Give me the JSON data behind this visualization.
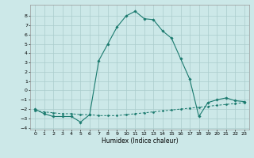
{
  "xlabel": "Humidex (Indice chaleur)",
  "bg_color": "#cce8e8",
  "grid_color": "#aacccc",
  "line_color": "#1a7a6e",
  "line1_x": [
    0,
    1,
    2,
    3,
    4,
    5,
    6,
    7,
    8,
    9,
    10,
    11,
    12,
    13,
    14,
    15,
    16,
    17,
    18,
    19,
    20,
    21,
    22,
    23
  ],
  "line1_y": [
    -2.0,
    -2.5,
    -2.8,
    -2.8,
    -2.8,
    -3.4,
    -2.6,
    3.2,
    5.0,
    6.8,
    8.0,
    8.5,
    7.7,
    7.6,
    6.4,
    5.6,
    3.4,
    1.2,
    -2.8,
    -1.3,
    -1.0,
    -0.8,
    -1.1,
    -1.2
  ],
  "line2_x": [
    0,
    1,
    2,
    3,
    4,
    5,
    6,
    7,
    8,
    9,
    10,
    11,
    12,
    13,
    14,
    15,
    16,
    17,
    18,
    19,
    20,
    21,
    22,
    23
  ],
  "line2_y": [
    -2.2,
    -2.3,
    -2.4,
    -2.5,
    -2.5,
    -2.6,
    -2.6,
    -2.7,
    -2.7,
    -2.7,
    -2.6,
    -2.5,
    -2.4,
    -2.3,
    -2.2,
    -2.1,
    -2.0,
    -1.9,
    -1.8,
    -1.7,
    -1.6,
    -1.5,
    -1.4,
    -1.3
  ],
  "xlim": [
    -0.5,
    23.5
  ],
  "ylim": [
    -4.2,
    9.2
  ],
  "yticks": [
    -4,
    -3,
    -2,
    -1,
    0,
    1,
    2,
    3,
    4,
    5,
    6,
    7,
    8
  ],
  "xticks": [
    0,
    1,
    2,
    3,
    4,
    5,
    6,
    7,
    8,
    9,
    10,
    11,
    12,
    13,
    14,
    15,
    16,
    17,
    18,
    19,
    20,
    21,
    22,
    23
  ]
}
